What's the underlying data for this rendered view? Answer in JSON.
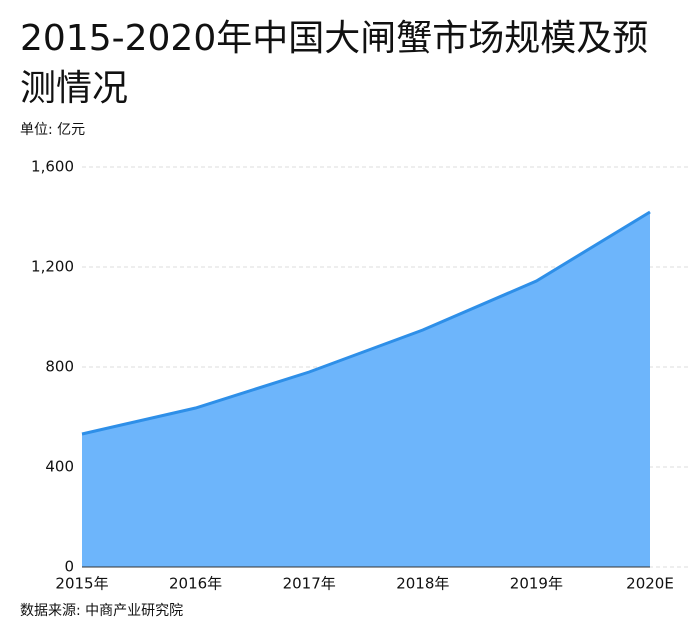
{
  "chart_data": {
    "type": "area",
    "title": "2015-2020年中国大闸蟹市场规模及预测情况",
    "subtitle": "单位: 亿元",
    "source": "数据来源: 中商产业研究院",
    "categories": [
      "2015年",
      "2016年",
      "2017年",
      "2018年",
      "2019年",
      "2020E"
    ],
    "values": [
      532,
      636,
      780,
      948,
      1144,
      1420
    ],
    "color": "#6db5fb",
    "line_color": "#2e8fe8",
    "ylim": [
      0,
      1600
    ],
    "yticks": [
      0,
      400,
      800,
      {
        "value": 1200,
        "label": "1,200"
      },
      {
        "value": 1600,
        "label": "1,600"
      }
    ],
    "grid": true
  }
}
